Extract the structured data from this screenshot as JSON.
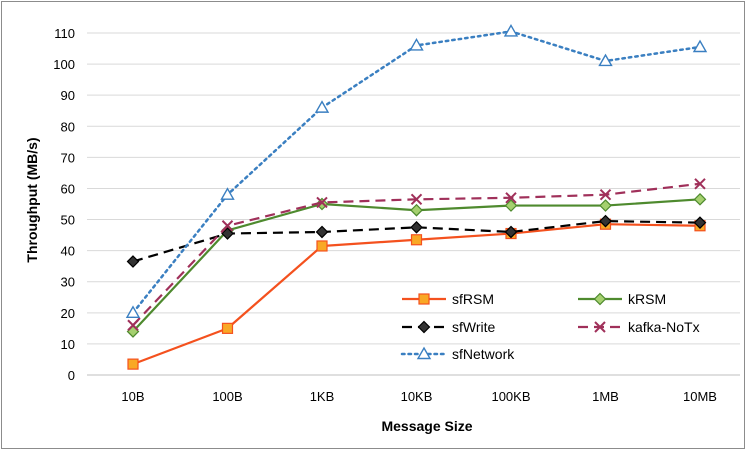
{
  "chart_data": {
    "type": "line",
    "xlabel": "Message Size",
    "ylabel": "Throughput (MB/s)",
    "categories": [
      "10B",
      "100B",
      "1KB",
      "10KB",
      "100KB",
      "1MB",
      "10MB"
    ],
    "ylim": [
      0,
      110
    ],
    "yticks": [
      0,
      10,
      20,
      30,
      40,
      50,
      60,
      70,
      80,
      90,
      100,
      110
    ],
    "grid": true,
    "legend_position": "bottom-right",
    "series": [
      {
        "name": "sfRSM",
        "values": [
          3.5,
          15,
          41.5,
          43.5,
          45.5,
          48.5,
          48
        ],
        "color": "#f4511e",
        "dash": "solid",
        "marker": "square",
        "marker_fill": "#f9a825",
        "marker_stroke": "#f4511e"
      },
      {
        "name": "kRSM",
        "values": [
          14,
          46.5,
          55,
          53,
          54.5,
          54.5,
          56.5
        ],
        "color": "#4e8a2e",
        "dash": "solid",
        "marker": "diamond",
        "marker_fill": "#a5d06f",
        "marker_stroke": "#4e8a2e"
      },
      {
        "name": "sfWrite",
        "values": [
          36.5,
          45.5,
          46,
          47.5,
          46,
          49.5,
          49
        ],
        "color": "#000000",
        "dash": "dash",
        "marker": "diamond",
        "marker_fill": "#333333",
        "marker_stroke": "#000000"
      },
      {
        "name": "kafka-NoTx",
        "values": [
          16,
          48,
          55.5,
          56.5,
          57,
          58,
          61.5
        ],
        "color": "#a0305a",
        "dash": "dash",
        "marker": "x",
        "marker_fill": "none",
        "marker_stroke": "#a0305a"
      },
      {
        "name": "sfNetwork",
        "values": [
          20,
          58,
          86,
          106,
          110.5,
          101,
          105.5
        ],
        "color": "#3a7fc1",
        "dash": "dot",
        "marker": "triangle",
        "marker_fill": "#ffffff",
        "marker_stroke": "#3a7fc1"
      }
    ]
  }
}
